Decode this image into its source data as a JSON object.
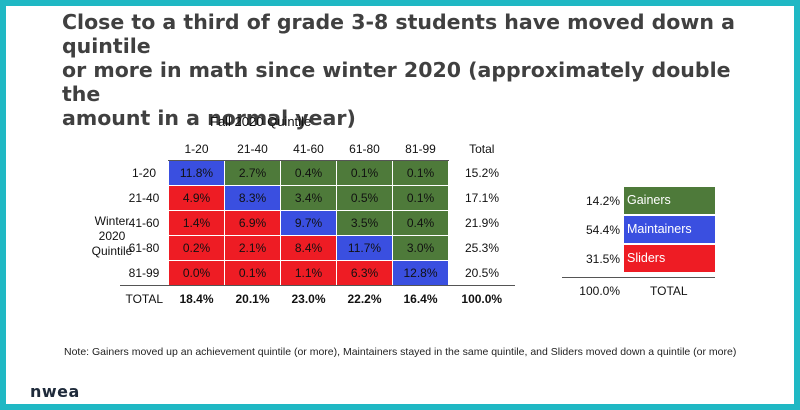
{
  "title_lines": [
    "Close to a third of grade 3-8 students have moved down a quintile",
    "or more in math since winter 2020 (approximately double the",
    "amount in a normal year)"
  ],
  "colors": {
    "gainers": "#4e7a3a",
    "maintainers": "#3a4fe0",
    "sliders": "#ee1c24",
    "frame": "#1fb8c4"
  },
  "chart_data": {
    "type": "table",
    "column_group_label": "Fall 2020 Quintile",
    "row_group_label": [
      "Winter",
      "2020",
      "Quintile"
    ],
    "columns": [
      "1-20",
      "21-40",
      "41-60",
      "61-80",
      "81-99"
    ],
    "total_label": "Total",
    "rows": [
      {
        "label": "1-20",
        "values": [
          "11.8%",
          "2.7%",
          "0.4%",
          "0.1%",
          "0.1%"
        ],
        "categories": [
          "maintainers",
          "gainers",
          "gainers",
          "gainers",
          "gainers"
        ],
        "total": "15.2%"
      },
      {
        "label": "21-40",
        "values": [
          "4.9%",
          "8.3%",
          "3.4%",
          "0.5%",
          "0.1%"
        ],
        "categories": [
          "sliders",
          "maintainers",
          "gainers",
          "gainers",
          "gainers"
        ],
        "total": "17.1%"
      },
      {
        "label": "41-60",
        "values": [
          "1.4%",
          "6.9%",
          "9.7%",
          "3.5%",
          "0.4%"
        ],
        "categories": [
          "sliders",
          "sliders",
          "maintainers",
          "gainers",
          "gainers"
        ],
        "total": "21.9%"
      },
      {
        "label": "61-80",
        "values": [
          "0.2%",
          "2.1%",
          "8.4%",
          "11.7%",
          "3.0%"
        ],
        "categories": [
          "sliders",
          "sliders",
          "sliders",
          "maintainers",
          "gainers"
        ],
        "total": "25.3%"
      },
      {
        "label": "81-99",
        "values": [
          "0.0%",
          "0.1%",
          "1.1%",
          "6.3%",
          "12.8%"
        ],
        "categories": [
          "sliders",
          "sliders",
          "sliders",
          "sliders",
          "maintainers"
        ],
        "total": "20.5%"
      }
    ],
    "totals_row": {
      "label": "TOTAL",
      "values": [
        "18.4%",
        "20.1%",
        "23.0%",
        "22.2%",
        "16.4%"
      ],
      "total": "100.0%"
    },
    "summary": [
      {
        "value": "14.2%",
        "label": "Gainers",
        "category": "gainers"
      },
      {
        "value": "54.4%",
        "label": "Maintainers",
        "category": "maintainers"
      },
      {
        "value": "31.5%",
        "label": "Sliders",
        "category": "sliders"
      }
    ],
    "summary_total": {
      "value": "100.0%",
      "label": "TOTAL"
    }
  },
  "note": "Note: Gainers moved up an achievement quintile (or more), Maintainers stayed in the same quintile, and Sliders moved down a quintile (or more)",
  "logo_text": "nwea"
}
